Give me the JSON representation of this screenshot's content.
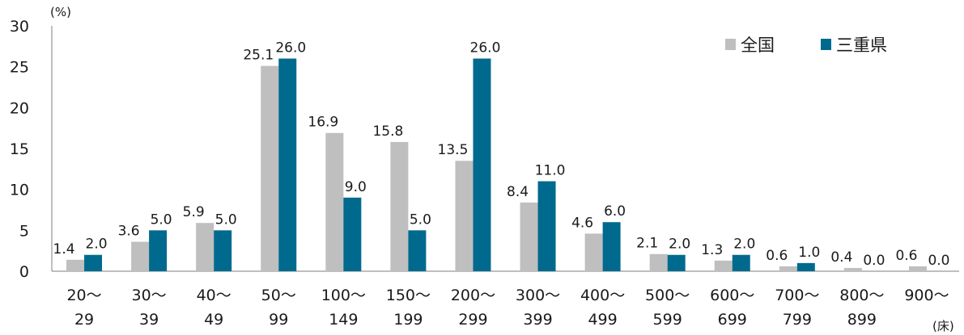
{
  "chart_data": {
    "type": "bar",
    "y_unit": "(%)",
    "x_unit": "(床)",
    "ylim": [
      0,
      30
    ],
    "y_ticks": [
      "0",
      "5",
      "10",
      "15",
      "20",
      "25",
      "30"
    ],
    "grid": false,
    "legend_position": "top-right",
    "categories": [
      [
        "20～",
        "29"
      ],
      [
        "30～",
        "39"
      ],
      [
        "40～",
        "49"
      ],
      [
        "50～",
        "99"
      ],
      [
        "100～",
        "149"
      ],
      [
        "150～",
        "199"
      ],
      [
        "200～",
        "299"
      ],
      [
        "300～",
        "399"
      ],
      [
        "400～",
        "499"
      ],
      [
        "500～",
        "599"
      ],
      [
        "600～",
        "699"
      ],
      [
        "700～",
        "799"
      ],
      [
        "800～",
        "899"
      ],
      [
        "900～",
        ""
      ]
    ],
    "series": [
      {
        "name": "全国",
        "color": "#bfbfbf",
        "values": [
          1.4,
          3.6,
          5.9,
          25.1,
          16.9,
          15.8,
          13.5,
          8.4,
          4.6,
          2.1,
          1.3,
          0.6,
          0.4,
          0.6
        ],
        "labels": [
          "1.4",
          "3.6",
          "5.9",
          "25.1",
          "16.9",
          "15.8",
          "13.5",
          "8.4",
          "4.6",
          "2.1",
          "1.3",
          "0.6",
          "0.4",
          "0.6"
        ]
      },
      {
        "name": "三重県",
        "color": "#006a8e",
        "values": [
          2.0,
          5.0,
          5.0,
          26.0,
          9.0,
          5.0,
          26.0,
          11.0,
          6.0,
          2.0,
          2.0,
          1.0,
          0.0,
          0.0
        ],
        "labels": [
          "2.0",
          "5.0",
          "5.0",
          "26.0",
          "9.0",
          "5.0",
          "26.0",
          "11.0",
          "6.0",
          "2.0",
          "2.0",
          "1.0",
          "0.0",
          "0.0"
        ]
      }
    ]
  }
}
